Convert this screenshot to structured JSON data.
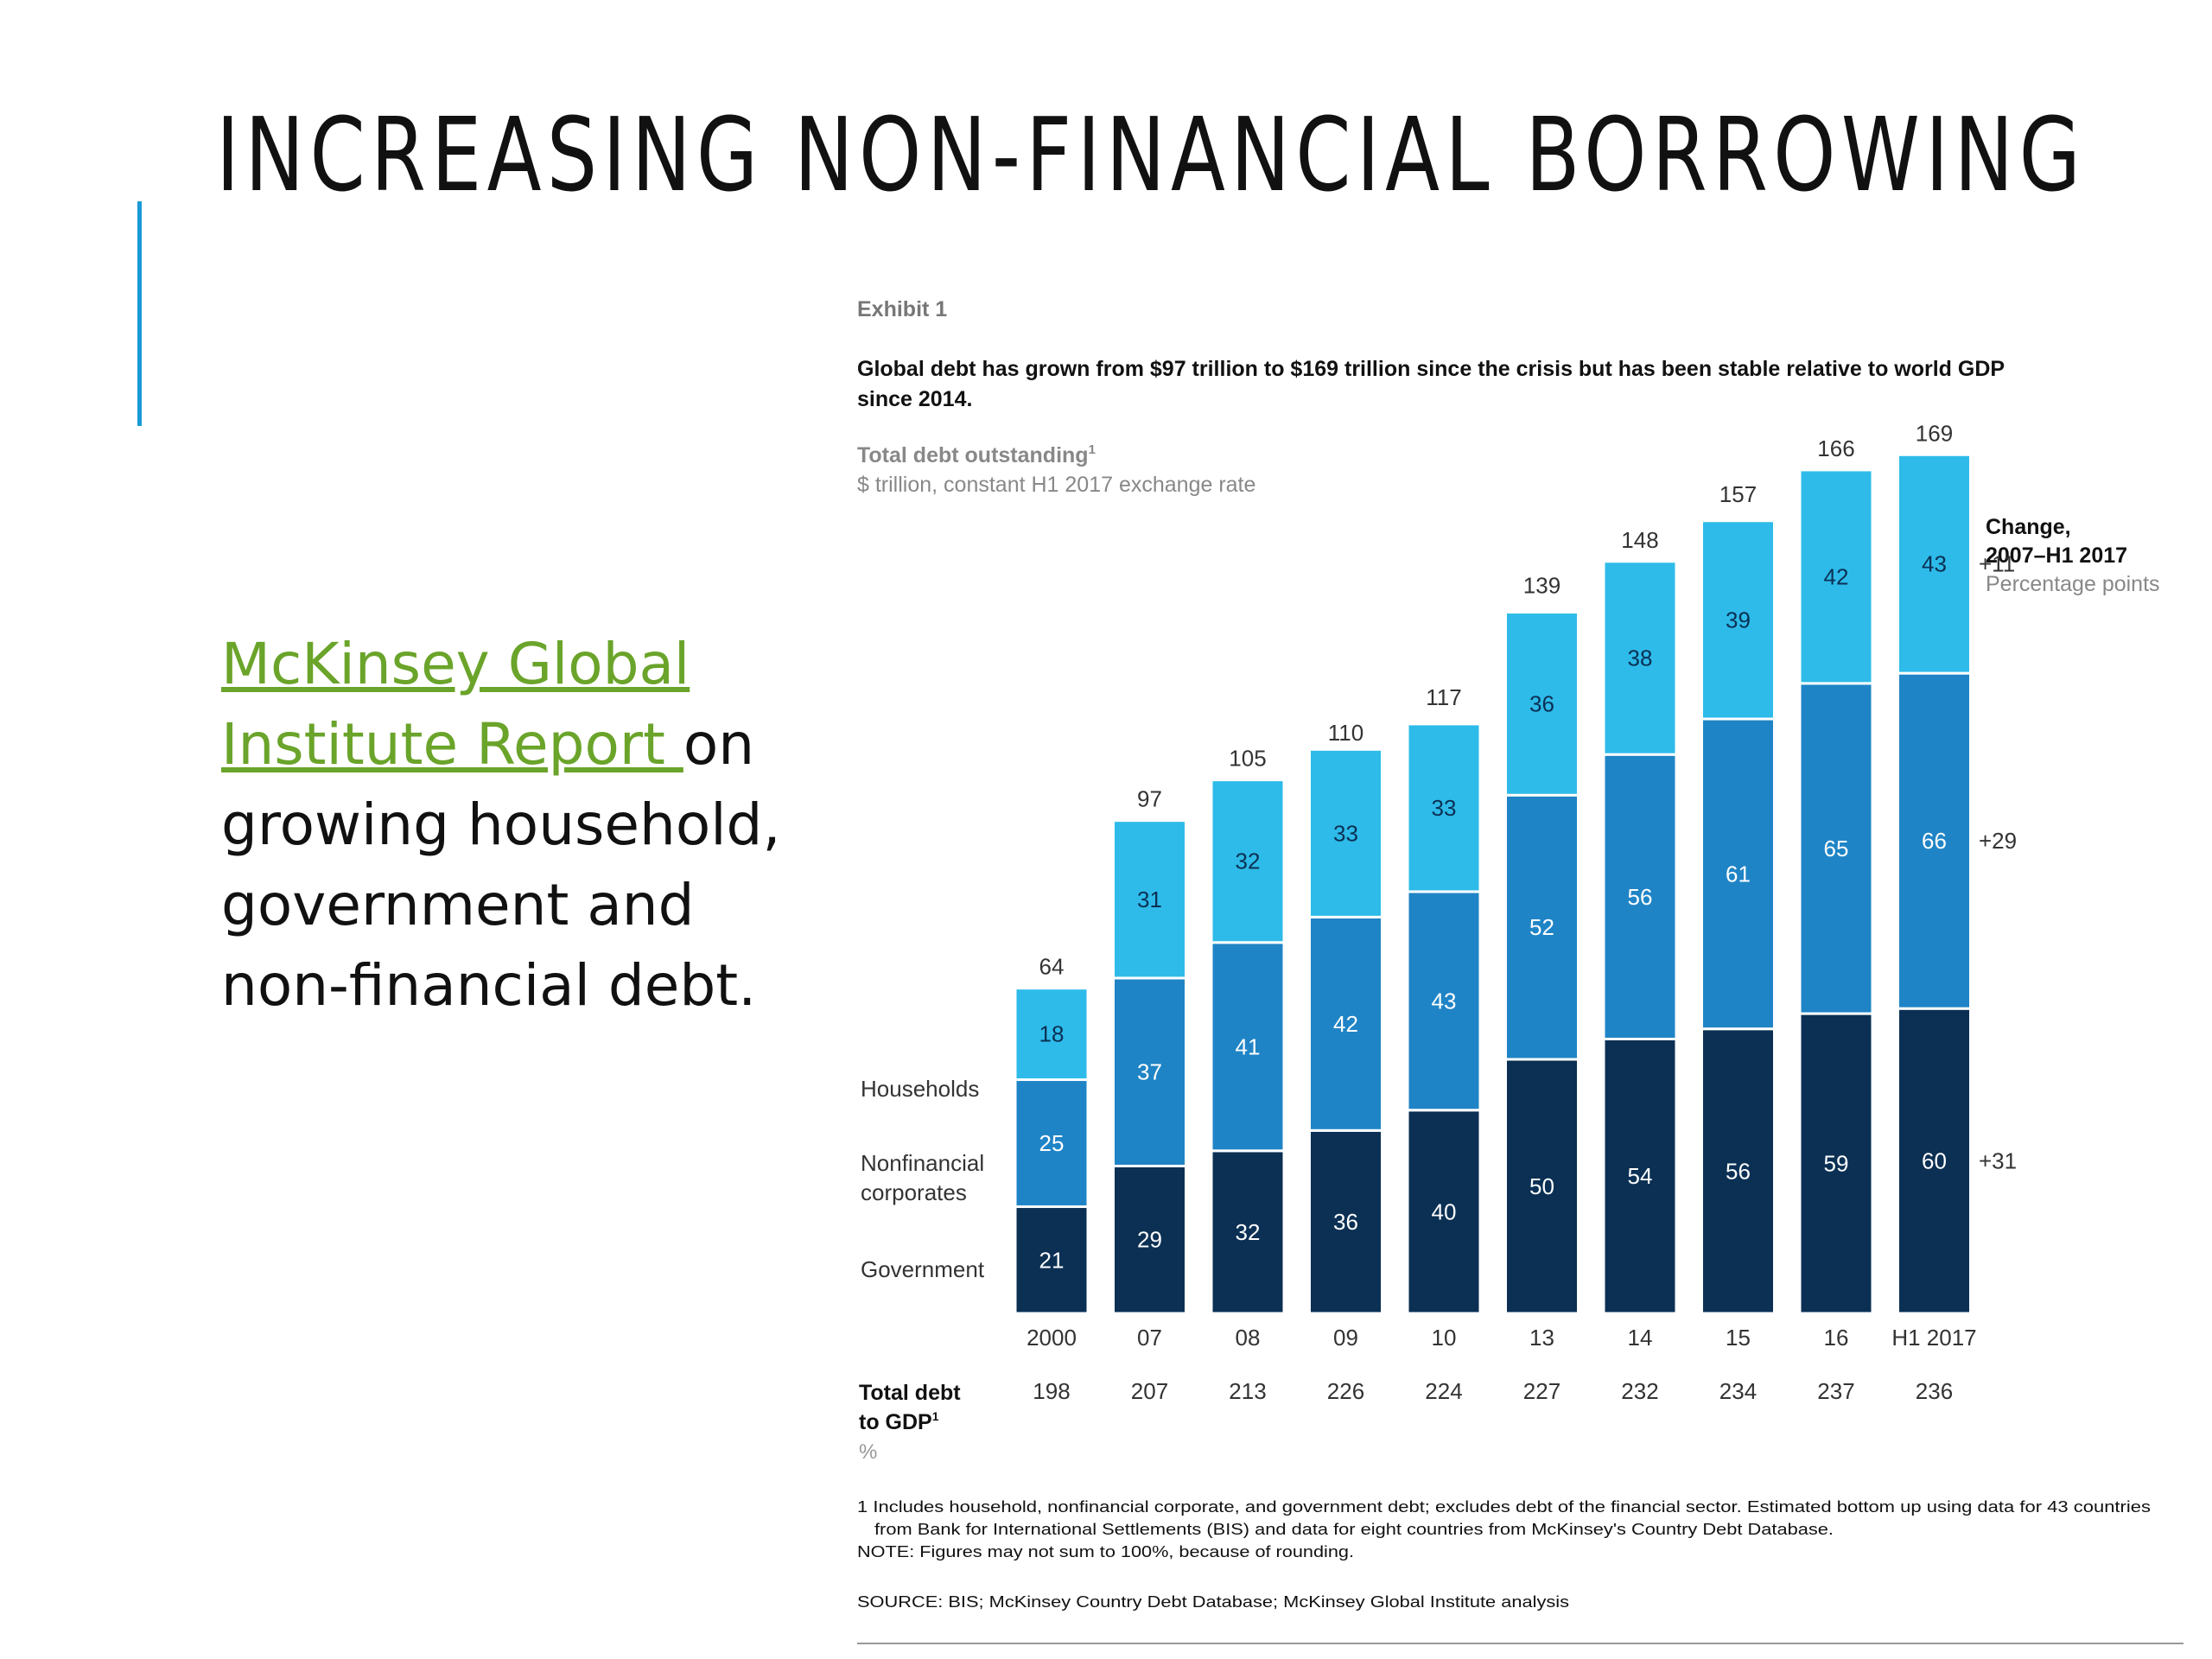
{
  "slide": {
    "title": "INCREASING NON-FINANCIAL BORROWING",
    "link_text": "McKinsey Global Institute Report ",
    "body_text": "on growing household, government and non-financial debt."
  },
  "colors": {
    "households": "#2ebbe9",
    "corporates": "#1f84c6",
    "government": "#0b3054",
    "accent": "#1a9ad6",
    "link": "#6aa42a"
  },
  "chart_data": {
    "type": "bar",
    "stacked": true,
    "exhibit_label": "Exhibit 1",
    "headline_line1": "Global debt has grown from $97 trillion to $169 trillion since the crisis but has been stable relative to world GDP",
    "headline_line2": "since 2014.",
    "title": "Total debt outstanding",
    "title_footnote_mark": "1",
    "subtitle": "$ trillion, constant H1 2017 exchange rate",
    "categories": [
      "2000",
      "07",
      "08",
      "09",
      "10",
      "13",
      "14",
      "15",
      "16",
      "H1 2017"
    ],
    "series": [
      {
        "name": "Government",
        "values": [
          21,
          29,
          32,
          36,
          40,
          50,
          54,
          56,
          59,
          60
        ]
      },
      {
        "name": "Nonfinancial corporates",
        "values": [
          25,
          37,
          41,
          42,
          43,
          52,
          56,
          61,
          65,
          66
        ]
      },
      {
        "name": "Households",
        "values": [
          18,
          31,
          32,
          33,
          33,
          36,
          38,
          39,
          42,
          43
        ]
      }
    ],
    "totals": [
      64,
      97,
      105,
      110,
      117,
      139,
      148,
      157,
      166,
      169
    ],
    "ylim": [
      0,
      180
    ],
    "change_header": [
      "Change,",
      "2007–H1 2017"
    ],
    "change_unit": "Percentage points",
    "changes": [
      "+31",
      "+29",
      "+11"
    ],
    "gdp_row_label": [
      "Total debt",
      "to GDP"
    ],
    "gdp_row_footnote_mark": "1",
    "gdp_row_unit": "%",
    "debt_to_gdp": [
      198,
      207,
      213,
      226,
      224,
      227,
      232,
      234,
      237,
      236
    ],
    "footnotes": [
      "1  Includes household, nonfinancial corporate, and government debt; excludes debt of the financial sector. Estimated bottom up using data for 43 countries",
      "from Bank for International Settlements (BIS) and data for eight countries from McKinsey's Country Debt Database.",
      "NOTE: Figures may not sum to 100%, because of rounding."
    ],
    "source": "SOURCE:  BIS; McKinsey Country Debt Database; McKinsey Global Institute analysis"
  }
}
